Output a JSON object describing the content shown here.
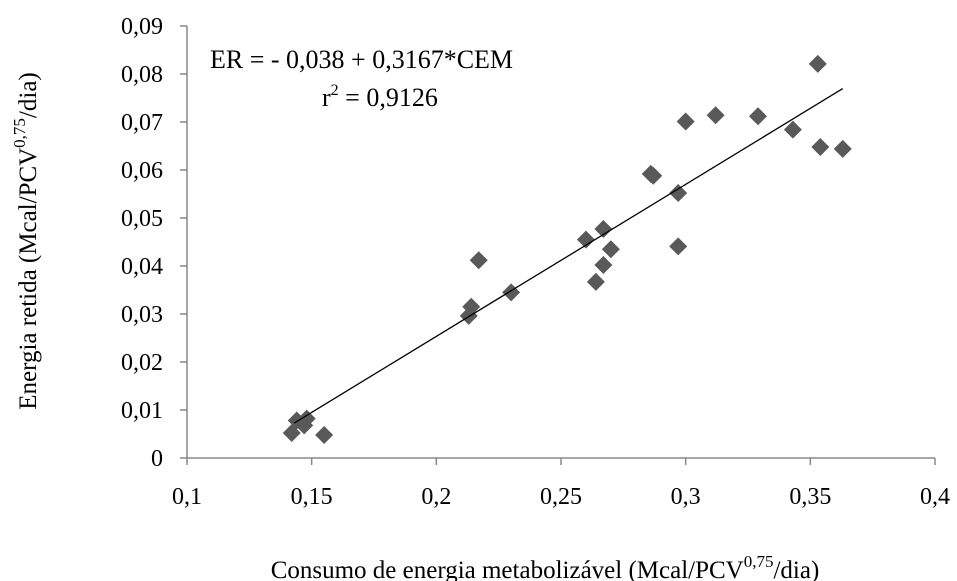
{
  "chart_data": {
    "type": "scatter",
    "xlabel": {
      "text": "Consumo de energia metabolizável (Mcal/PCV",
      "sup": "0,75",
      "tail": "/dia)"
    },
    "ylabel": {
      "text": "Energia retida (Mcal/PCV",
      "sup": "0,75",
      "tail": "/dia)"
    },
    "xlim": [
      0.1,
      0.4
    ],
    "ylim": [
      0,
      0.09
    ],
    "x_ticks": [
      0.1,
      0.15,
      0.2,
      0.25,
      0.3,
      0.35,
      0.4
    ],
    "x_tick_labels": [
      "0,1",
      "0,15",
      "0,2",
      "0,25",
      "0,3",
      "0,35",
      "0,4"
    ],
    "y_ticks": [
      0,
      0.01,
      0.02,
      0.03,
      0.04,
      0.05,
      0.06,
      0.07,
      0.08,
      0.09
    ],
    "y_tick_labels": [
      "0",
      "0,01",
      "0,02",
      "0,03",
      "0,04",
      "0,05",
      "0,06",
      "0,07",
      "0,08",
      "0,09"
    ],
    "grid": false,
    "legend": "none",
    "marker": "diamond",
    "marker_color": "#595959",
    "line_color": "#000000",
    "points": [
      [
        0.142,
        0.0052
      ],
      [
        0.144,
        0.0078
      ],
      [
        0.147,
        0.0068
      ],
      [
        0.148,
        0.0082
      ],
      [
        0.155,
        0.0048
      ],
      [
        0.213,
        0.0296
      ],
      [
        0.214,
        0.0315
      ],
      [
        0.217,
        0.0412
      ],
      [
        0.23,
        0.0345
      ],
      [
        0.26,
        0.0455
      ],
      [
        0.264,
        0.0367
      ],
      [
        0.267,
        0.0402
      ],
      [
        0.267,
        0.0477
      ],
      [
        0.27,
        0.0435
      ],
      [
        0.286,
        0.0592
      ],
      [
        0.287,
        0.0588
      ],
      [
        0.297,
        0.0552
      ],
      [
        0.297,
        0.0441
      ],
      [
        0.3,
        0.0701
      ],
      [
        0.312,
        0.0714
      ],
      [
        0.329,
        0.0712
      ],
      [
        0.343,
        0.0684
      ],
      [
        0.353,
        0.0821
      ],
      [
        0.354,
        0.0648
      ],
      [
        0.363,
        0.0644
      ]
    ],
    "trendline": {
      "intercept": -0.038,
      "slope": 0.3167,
      "x_range": [
        0.143,
        0.363
      ]
    },
    "annotation": {
      "equation": "ER = - 0,038 + 0,3167*CEM",
      "r2_prefix": "r",
      "r2_sup": "2",
      "r2_suffix": " = 0,9126"
    }
  }
}
